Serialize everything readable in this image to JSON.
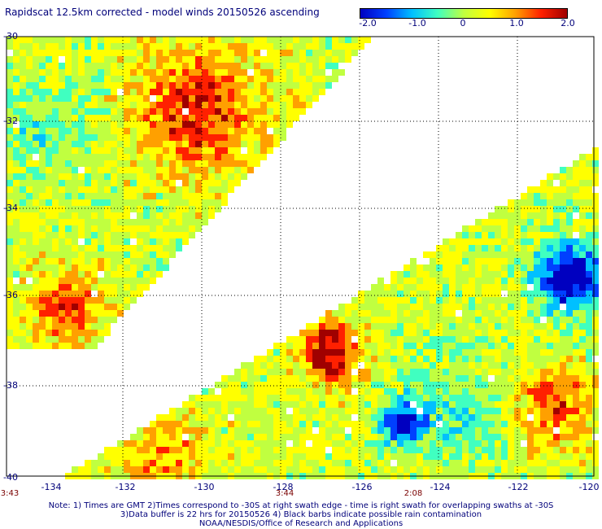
{
  "title": "Rapidscat 12.5km corrected - model winds 20150526 ascending",
  "colorbar": {
    "labels": [
      "-2.0",
      "-1.0",
      "0",
      "1.0",
      "2.0"
    ],
    "colors": [
      "#0000c0",
      "#0040ff",
      "#00c0ff",
      "#40ffc0",
      "#c0ff40",
      "#ffff00",
      "#ffa000",
      "#ff2000",
      "#a00000"
    ]
  },
  "map": {
    "lat_labels": [
      "-30",
      "-32",
      "-34",
      "-36",
      "-38",
      "-40"
    ],
    "lon_labels": [
      "-134",
      "-132",
      "-130",
      "-128",
      "-126",
      "-124",
      "-122",
      "-120"
    ],
    "time_labels": [
      "3:43",
      "3:44",
      "2:08"
    ],
    "lon_range": [
      -135,
      -120
    ],
    "lat_range": [
      -40,
      -30
    ]
  },
  "notes": [
    "Note: 1) Times are GMT 2)Times correspond to -30S at right swath edge - time is right swath for overlapping swaths at -30S",
    "3)Data buffer is 22 hrs for 20150526 4) Black barbs indicate possible rain contamination",
    "NOAA/NESDIS/Office of Research and Applications"
  ]
}
